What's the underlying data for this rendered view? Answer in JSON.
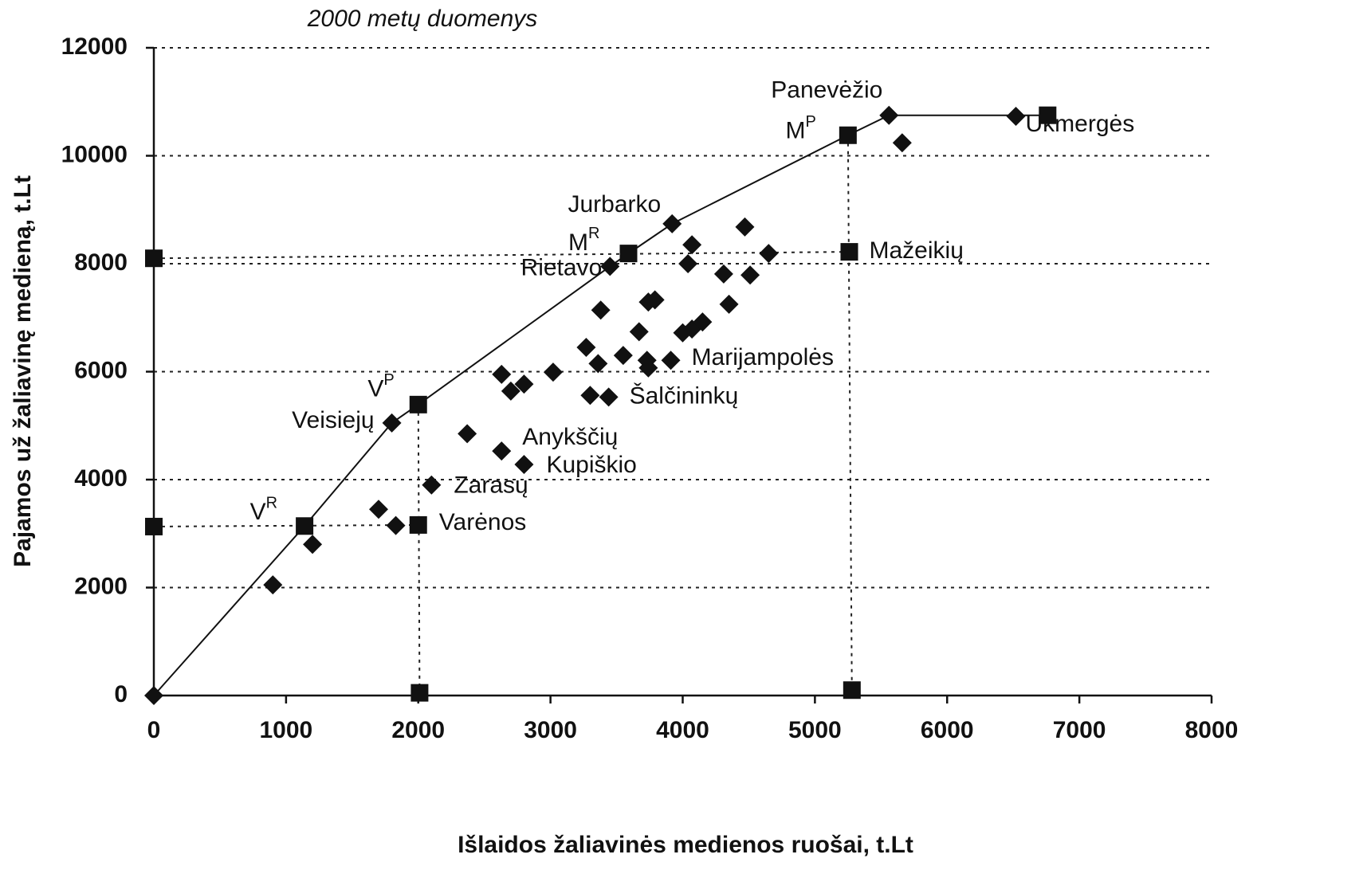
{
  "chart_data": {
    "type": "scatter",
    "title": "2000 metų duomenys",
    "x_label": "Išlaidos žaliavinės medienos ruošai, t.Lt",
    "y_label": "Pajamos už žaliavinę medieną, t.Lt",
    "xlim": [
      0,
      8000
    ],
    "ylim": [
      0,
      12000
    ],
    "xticks": [
      0,
      1000,
      2000,
      3000,
      4000,
      5000,
      6000,
      7000,
      8000
    ],
    "yticks": [
      0,
      2000,
      4000,
      6000,
      8000,
      10000,
      12000
    ],
    "grid": true,
    "frontier": {
      "color": "#111",
      "x": [
        0,
        1140,
        1800,
        2000,
        3450,
        3590,
        3920,
        5250,
        5560,
        6760
      ],
      "y": [
        0,
        3140,
        5050,
        5390,
        7950,
        8190,
        8740,
        10380,
        10750,
        10750
      ]
    },
    "series": [
      {
        "marker": "diamond",
        "color": "#111",
        "x": [
          0,
          900,
          1200,
          1700,
          1830,
          1800,
          2100,
          2370,
          2630,
          2800,
          2630,
          2700,
          2800,
          3020,
          3270,
          3360,
          3300,
          3440,
          3380,
          3450,
          3550,
          3670,
          3740,
          3790,
          3730,
          3740,
          3910,
          3920,
          4000,
          4070,
          4150,
          4040,
          4070,
          4310,
          4350,
          4510,
          4470,
          4650,
          5560,
          5660,
          6520
        ],
        "y": [
          0,
          2050,
          2800,
          3450,
          3150,
          5050,
          3900,
          4850,
          4530,
          4280,
          5950,
          5640,
          5770,
          5990,
          6450,
          6150,
          5560,
          5530,
          7140,
          7950,
          6300,
          6740,
          7290,
          7330,
          6210,
          6070,
          6210,
          8740,
          6720,
          6790,
          6920,
          8000,
          8350,
          7810,
          7250,
          7790,
          8680,
          8190,
          10750,
          10240,
          10730
        ],
        "labels": [
          null,
          null,
          null,
          null,
          null,
          "Veisiejų",
          "Zarasų",
          null,
          "Anykščių",
          "Kupiškio",
          null,
          null,
          null,
          null,
          null,
          null,
          null,
          "Šalčininkų",
          null,
          "Rietavo",
          null,
          null,
          null,
          null,
          null,
          null,
          "Marijampolės",
          "Jurbarko",
          null,
          null,
          null,
          null,
          null,
          null,
          null,
          null,
          null,
          null,
          "Panevėžio",
          null,
          "Ukmergės"
        ]
      },
      {
        "marker": "square",
        "color": "#111",
        "x": [
          0,
          0,
          1140,
          2000,
          2000,
          2010,
          3590,
          5260,
          5250,
          5280,
          6760
        ],
        "y": [
          8100,
          3130,
          3140,
          5390,
          3160,
          50,
          8190,
          8220,
          10380,
          100,
          10750
        ],
        "labels": [
          null,
          null,
          "V",
          "V",
          "Varėnos",
          null,
          "M",
          "Mažeikių",
          "M",
          null,
          null
        ],
        "label_superscripts": [
          null,
          null,
          "R",
          "P",
          null,
          null,
          "R",
          null,
          "P",
          null,
          null
        ]
      }
    ]
  }
}
